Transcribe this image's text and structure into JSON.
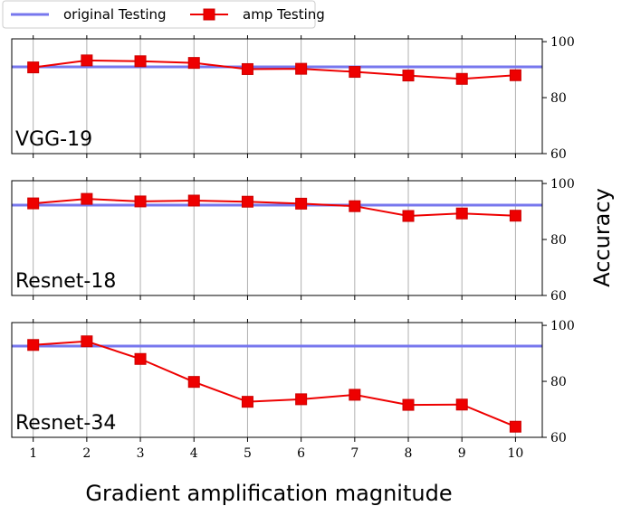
{
  "chart_data": {
    "type": "line",
    "legend": {
      "placement": "top-left, above plots",
      "entries": [
        {
          "label": "original Testing",
          "color": "#7777ee",
          "marker": "none"
        },
        {
          "label": "amp Testing",
          "color": "#ee0000",
          "marker": "square"
        }
      ]
    },
    "xlabel": "Gradient amplification magnitude",
    "ylabel": "Accuracy",
    "x_ticks": [
      "1",
      "2",
      "3",
      "4",
      "5",
      "6",
      "7",
      "8",
      "9",
      "10"
    ],
    "x": [
      1,
      2,
      3,
      4,
      5,
      6,
      7,
      8,
      9,
      10
    ],
    "xlim": [
      0.6,
      10.5
    ],
    "y_ticks": [
      "60",
      "80",
      "100"
    ],
    "ylim": [
      60,
      101
    ],
    "grid": "vertical lines at x ticks",
    "y_axis_side": "right",
    "panels": [
      {
        "name": "VGG-19",
        "original_testing": 91.0,
        "amp_testing": [
          90.8,
          93.3,
          93.0,
          92.4,
          90.2,
          90.3,
          89.2,
          87.9,
          86.7,
          88.0
        ]
      },
      {
        "name": "Resnet-18",
        "original_testing": 92.3,
        "amp_testing": [
          92.9,
          94.5,
          93.6,
          93.9,
          93.5,
          92.8,
          91.9,
          88.4,
          89.3,
          88.5
        ]
      },
      {
        "name": "Resnet-34",
        "original_testing": 92.6,
        "amp_testing": [
          93.0,
          94.3,
          88.0,
          79.8,
          72.7,
          73.6,
          75.2,
          71.6,
          71.7,
          63.8
        ]
      }
    ]
  }
}
